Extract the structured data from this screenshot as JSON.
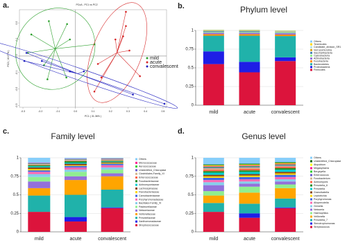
{
  "chart_data": [
    {
      "type": "scatter",
      "panel_label": "a.",
      "title": "PCoA - PC1 vs PC2",
      "x_label": "PC1 ( 31.36% )",
      "y_label": "PC2 ( 16.67% )",
      "xlim": [
        -0.32,
        0.52
      ],
      "ylim": [
        -0.31,
        0.28
      ],
      "xticks": [
        -0.3,
        -0.2,
        -0.1,
        {
          "value": 0,
          "label": "0.0"
        },
        0.1,
        0.2,
        0.3,
        0.4,
        0.5
      ],
      "yticks": [
        -0.3,
        -0.2,
        -0.1,
        {
          "value": 0,
          "label": "0.0"
        },
        0.1,
        0.2
      ],
      "series": [
        {
          "name": "mild",
          "color": "#2ca02c",
          "x": [
            -0.152,
            -0.252,
            -0.272,
            -0.18,
            -0.16,
            -0.052,
            0.108,
            -0.032,
            -0.048
          ],
          "values": [
            0.211,
            0.13,
            0.019,
            -0.056,
            -0.141,
            -0.13,
            0.07,
            0.1,
            0.193
          ]
        },
        {
          "name": "acute",
          "color": "#d62728",
          "x": [
            0.288,
            0.288,
            0.272,
            0.228,
            0.308,
            0.128,
            0.148,
            0.108,
            0.368
          ],
          "values": [
            0.267,
            0.181,
            0.119,
            0.1,
            0.033,
            -0.048,
            -0.13,
            -0.215,
            -0.122
          ]
        },
        {
          "name": "convalescent",
          "color": "#1f1fbf",
          "x": [
            -0.28,
            -0.292,
            -0.192,
            -0.032,
            0.048,
            0.328,
            0.508
          ],
          "values": [
            0.019,
            -0.03,
            -0.03,
            -0.093,
            -0.093,
            -0.233,
            -0.289
          ]
        }
      ]
    },
    {
      "type": "bar",
      "panel_label": "b.",
      "title": "Phylum level",
      "categories": [
        "mild",
        "acute",
        "convalescent"
      ],
      "ylim": [
        0,
        1
      ],
      "yticks": [
        0,
        0.25,
        0.5,
        0.75,
        1
      ],
      "grid": true,
      "series": [
        {
          "name": "Firmicutes",
          "color": "#dc143c",
          "values": [
            0.55,
            0.44,
            0.59
          ]
        },
        {
          "name": "Proteobacteria",
          "color": "#1e1ee6",
          "values": [
            0.17,
            0.14,
            0.05
          ]
        },
        {
          "name": "Bacteroidetes",
          "color": "#20b2aa",
          "values": [
            0.21,
            0.35,
            0.285
          ]
        },
        {
          "name": "Fusobacteria",
          "color": "#ff8c00",
          "values": [
            0.02,
            0.02,
            0.02
          ]
        },
        {
          "name": "Actinobacteria",
          "color": "#9370db",
          "values": [
            0.02,
            0.02,
            0.02
          ]
        },
        {
          "name": "Cyanobacteria",
          "color": "#90ee90",
          "values": [
            0.01,
            0.01,
            0.01
          ]
        },
        {
          "name": "Saccharibacteria",
          "color": "#4682b4",
          "values": [
            0.01,
            0.01,
            0.005
          ]
        },
        {
          "name": "Verrucomicrobia",
          "color": "#daa520",
          "values": [
            0.005,
            0.005,
            0.005
          ]
        },
        {
          "name": "Candidate_division_SR1",
          "color": "#b0e0e6",
          "values": [
            0.005,
            0.005,
            0.005
          ]
        },
        {
          "name": "Tenericutes",
          "color": "#ffd700",
          "values": [
            0.005,
            0.005,
            0.005
          ]
        },
        {
          "name": "Others",
          "color": "#87cefa",
          "values": [
            0.005,
            0.005,
            0.005
          ]
        }
      ]
    },
    {
      "type": "bar",
      "panel_label": "c.",
      "title": "Family level",
      "categories": [
        "mild",
        "acute",
        "convalescent"
      ],
      "ylim": [
        0,
        1
      ],
      "yticks": [
        0,
        0.25,
        0.5,
        0.75,
        1
      ],
      "grid": true,
      "series": [
        {
          "name": "Streptococcaceae",
          "color": "#dc143c",
          "values": [
            0.27,
            0.14,
            0.32
          ]
        },
        {
          "name": "Xanthomonadaceae",
          "color": "#1e1ee6",
          "values": [
            0,
            0.06,
            0.01
          ]
        },
        {
          "name": "Prevotellaceae",
          "color": "#20b2aa",
          "values": [
            0.22,
            0.3,
            0.24
          ]
        },
        {
          "name": "Veillonellaceae",
          "color": "#ffa500",
          "values": [
            0.1,
            0.2,
            0.18
          ]
        },
        {
          "name": "Neisseriaceae",
          "color": "#9370db",
          "values": [
            0.09,
            0.05,
            0.04
          ]
        },
        {
          "name": "Pasteurellaceae",
          "color": "#90ee90",
          "values": [
            0.06,
            0.06,
            0.05
          ]
        },
        {
          "name": "Bacillales-Family_XI",
          "color": "#87ceeb",
          "values": [
            0.04,
            0.03,
            0.03
          ]
        },
        {
          "name": "Porphyromonadaceae",
          "color": "#ff69b4",
          "values": [
            0.03,
            0.03,
            0.03
          ]
        },
        {
          "name": "Carnobacteriaceae",
          "color": "#4169e1",
          "values": [
            0.02,
            0.02,
            0.02
          ]
        },
        {
          "name": "Flavobacteriaceae",
          "color": "#ffd700",
          "values": [
            0.02,
            0.01,
            0.01
          ]
        },
        {
          "name": "Lachnospiraceae",
          "color": "#8b4513",
          "values": [
            0.02,
            0.02,
            0.01
          ]
        },
        {
          "name": "Actinomycetaceae",
          "color": "#00ced1",
          "values": [
            0.015,
            0.015,
            0.01
          ]
        },
        {
          "name": "Fusobacteriaceae",
          "color": "#228b22",
          "values": [
            0.015,
            0.02,
            0.01
          ]
        },
        {
          "name": "Enterococcaceae",
          "color": "#ff6347",
          "values": [
            0.005,
            0.005,
            0.005
          ]
        },
        {
          "name": "Clostridiales-Family_XI",
          "color": "#d2b48c",
          "values": [
            0.01,
            0.01,
            0.01
          ]
        },
        {
          "name": "Unidentified_Chloroplast",
          "color": "#6a5acd",
          "values": [
            0.005,
            0.005,
            0.005
          ]
        },
        {
          "name": "Aerococcaceae",
          "color": "#32cd32",
          "values": [
            0.005,
            0.005,
            0.005
          ]
        },
        {
          "name": "Micrococcaceae",
          "color": "#ff1493",
          "values": [
            0.005,
            0.005,
            0.005
          ]
        },
        {
          "name": "Others",
          "color": "#87cefa",
          "values": [
            0.07,
            0.015,
            0.01
          ]
        }
      ]
    },
    {
      "type": "bar",
      "panel_label": "d.",
      "title": "Genus level",
      "categories": [
        "mild",
        "acute",
        "convalescent"
      ],
      "ylim": [
        0,
        1
      ],
      "yticks": [
        0,
        0.25,
        0.5,
        0.75,
        1
      ],
      "grid": true,
      "series": [
        {
          "name": "Streptococcus",
          "color": "#dc143c",
          "values": [
            0.27,
            0.19,
            0.32
          ]
        },
        {
          "name": "Stenotrophomonas",
          "color": "#1e1ee6",
          "values": [
            0,
            0.06,
            0.01
          ]
        },
        {
          "name": "Prevotella_7",
          "color": "#20b2aa",
          "values": [
            0.12,
            0.13,
            0.12
          ]
        },
        {
          "name": "Veillonella",
          "color": "#ffa500",
          "values": [
            0.1,
            0.15,
            0.14
          ]
        },
        {
          "name": "Haemophilus",
          "color": "#90ee90",
          "values": [
            0.06,
            0.08,
            0.05
          ]
        },
        {
          "name": "Neisseria",
          "color": "#9370db",
          "values": [
            0.08,
            0.04,
            0.04
          ]
        },
        {
          "name": "Gemella",
          "color": "#87ceeb",
          "values": [
            0.04,
            0.03,
            0.03
          ]
        },
        {
          "name": "Alloprevotella",
          "color": "#ff69b4",
          "values": [
            0.03,
            0.03,
            0.03
          ]
        },
        {
          "name": "Porphyromonas",
          "color": "#4169e1",
          "values": [
            0.03,
            0.03,
            0.03
          ]
        },
        {
          "name": "Leptotrichia",
          "color": "#ffd700",
          "values": [
            0.02,
            0.02,
            0.02
          ]
        },
        {
          "name": "Granulicatella",
          "color": "#8b4513",
          "values": [
            0.02,
            0.02,
            0.02
          ]
        },
        {
          "name": "Prevotella",
          "color": "#00ced1",
          "values": [
            0.03,
            0.03,
            0.03
          ]
        },
        {
          "name": "Prevotella_6",
          "color": "#228b22",
          "values": [
            0.02,
            0.02,
            0.02
          ]
        },
        {
          "name": "Actinomyces",
          "color": "#ff6347",
          "values": [
            0.02,
            0.02,
            0.02
          ]
        },
        {
          "name": "Fusobacterium",
          "color": "#d2b48c",
          "values": [
            0.02,
            0.02,
            0.01
          ]
        },
        {
          "name": "Enterococcus",
          "color": "#6a5acd",
          "values": [
            0.01,
            0.01,
            0.01
          ]
        },
        {
          "name": "Bergeyella",
          "color": "#32cd32",
          "values": [
            0.01,
            0.01,
            0.01
          ]
        },
        {
          "name": "Megasphaera",
          "color": "#ff1493",
          "values": [
            0.01,
            0.01,
            0.01
          ]
        },
        {
          "name": "Atopobium",
          "color": "#ffff00",
          "values": [
            0.01,
            0.01,
            0.01
          ]
        },
        {
          "name": "Unidentified_Chloroplast",
          "color": "#006400",
          "values": [
            0.01,
            0.01,
            0.01
          ]
        },
        {
          "name": "Others",
          "color": "#87cefa",
          "values": [
            0.09,
            0.08,
            0.06
          ]
        }
      ]
    }
  ]
}
